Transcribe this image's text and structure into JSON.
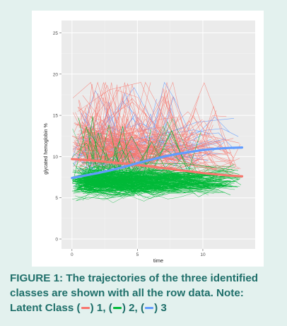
{
  "chart_data": {
    "type": "line",
    "xlabel": "time",
    "ylabel": "glycated hemoglobin %",
    "xlim": [
      -0.8,
      14
    ],
    "ylim": [
      -1.2,
      26.5
    ],
    "x_ticks": [
      0,
      5,
      10
    ],
    "y_ticks": [
      0,
      5,
      10,
      15,
      20,
      25
    ],
    "grid": true,
    "series": [
      {
        "class": "1",
        "color": "#f8766d",
        "trend_x": [
          0,
          1,
          2,
          3,
          4,
          5,
          6,
          7,
          8,
          9,
          10,
          11,
          12,
          13
        ],
        "trend_y": [
          9.7,
          9.6,
          9.45,
          9.3,
          9.15,
          9.0,
          8.8,
          8.6,
          8.4,
          8.2,
          8.0,
          7.85,
          7.7,
          7.6
        ],
        "raw_band": [
          8.5,
          13
        ]
      },
      {
        "class": "2",
        "color": "#00ba38",
        "raw_band": [
          5,
          9
        ]
      },
      {
        "class": "3",
        "color": "#619cff",
        "trend_x": [
          0,
          1,
          2,
          3,
          4,
          5,
          6,
          7,
          8,
          9,
          10,
          11,
          12,
          13
        ],
        "trend_y": [
          7.4,
          7.7,
          8.0,
          8.35,
          8.75,
          9.2,
          9.6,
          10.0,
          10.3,
          10.55,
          10.8,
          10.95,
          11.05,
          11.1
        ],
        "raw_band": [
          8,
          14
        ]
      }
    ]
  },
  "caption": {
    "line1": "FIGURE 1: The trajectories of the three identified",
    "line2": "classes are shown with all the row data. Note:",
    "line3_a": "Latent Class (",
    "line3_b": ") 1, (",
    "line3_c": ") 2, (",
    "line3_d": ") 3"
  }
}
